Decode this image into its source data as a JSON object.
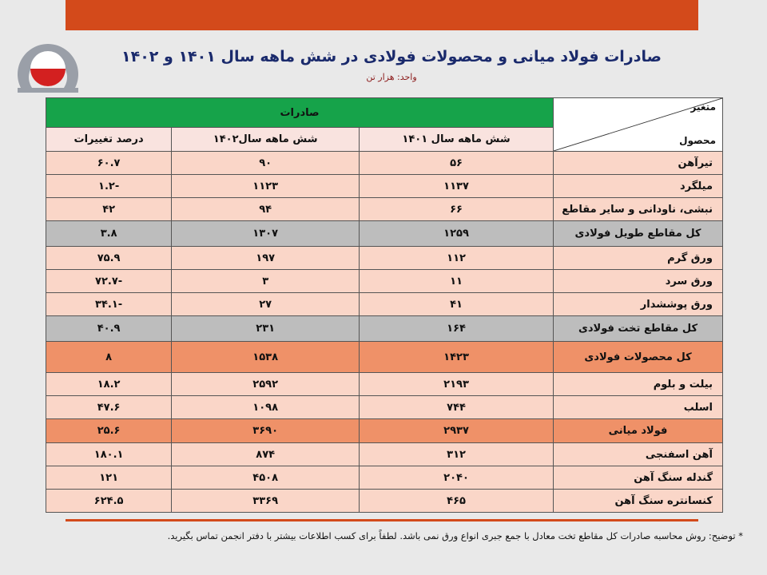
{
  "title": "صادرات فولاد میانی و محصولات فولادی در شش ماهه سال ۱۴۰۱ و ۱۴۰۲",
  "unit": "واحد: هزار تن",
  "colors": {
    "topbar": "#d34a1b",
    "header": "#16a34a",
    "row": "#fad6c8",
    "total": "#bdbdbd",
    "highlight": "#ef9168"
  },
  "table": {
    "corner_top": "متغیر",
    "corner_bottom": "محصول",
    "group_header": "صادرات",
    "columns": [
      "شش ماهه سال ۱۴۰۱",
      "شش ماهه سال۱۴۰۲",
      "درصد تغییرات"
    ],
    "rows": [
      {
        "name": "تیرآهن",
        "v1401": "۵۶",
        "v1402": "۹۰",
        "change": "۶۰.۷",
        "style": "row"
      },
      {
        "name": "میلگرد",
        "v1401": "۱۱۳۷",
        "v1402": "۱۱۲۳",
        "change": "-۱.۲",
        "style": "row"
      },
      {
        "name": "نبشی، ناودانی و سایر مقاطع",
        "v1401": "۶۶",
        "v1402": "۹۴",
        "change": "۴۲",
        "style": "row"
      },
      {
        "name": "کل مقاطع طویل فولادی",
        "v1401": "۱۲۵۹",
        "v1402": "۱۳۰۷",
        "change": "۳.۸",
        "style": "total"
      },
      {
        "name": "ورق گرم",
        "v1401": "۱۱۲",
        "v1402": "۱۹۷",
        "change": "۷۵.۹",
        "style": "row"
      },
      {
        "name": "ورق سرد",
        "v1401": "۱۱",
        "v1402": "۳",
        "change": "-۷۲.۷",
        "style": "row"
      },
      {
        "name": "ورق پوششدار",
        "v1401": "۴۱",
        "v1402": "۲۷",
        "change": "-۳۴.۱",
        "style": "row"
      },
      {
        "name": "کل مقاطع تخت فولادی",
        "v1401": "۱۶۴",
        "v1402": "۲۳۱",
        "change": "۴۰.۹",
        "style": "total"
      },
      {
        "name": "کل محصولات فولادی",
        "v1401": "۱۴۲۳",
        "v1402": "۱۵۳۸",
        "change": "۸",
        "style": "grand"
      },
      {
        "name": "بیلت و بلوم",
        "v1401": "۲۱۹۳",
        "v1402": "۲۵۹۲",
        "change": "۱۸.۲",
        "style": "row"
      },
      {
        "name": "اسلب",
        "v1401": "۷۴۴",
        "v1402": "۱۰۹۸",
        "change": "۴۷.۶",
        "style": "row"
      },
      {
        "name": "فولاد میانی",
        "v1401": "۲۹۳۷",
        "v1402": "۳۶۹۰",
        "change": "۲۵.۶",
        "style": "mid"
      },
      {
        "name": "آهن اسفنجی",
        "v1401": "۳۱۲",
        "v1402": "۸۷۴",
        "change": "۱۸۰.۱",
        "style": "row"
      },
      {
        "name": "گندله سنگ آهن",
        "v1401": "۲۰۴۰",
        "v1402": "۴۵۰۸",
        "change": "۱۲۱",
        "style": "row"
      },
      {
        "name": "کنسانتره سنگ آهن",
        "v1401": "۴۶۵",
        "v1402": "۳۳۶۹",
        "change": "۶۲۴.۵",
        "style": "row"
      }
    ]
  },
  "note": "* توضیح: روش محاسبه صادرات کل مقاطع تخت معادل با جمع جبری انواع ورق نمی باشد. لطفاً برای کسب اطلاعات بیشتر با دفتر انجمن تماس بگیرید."
}
